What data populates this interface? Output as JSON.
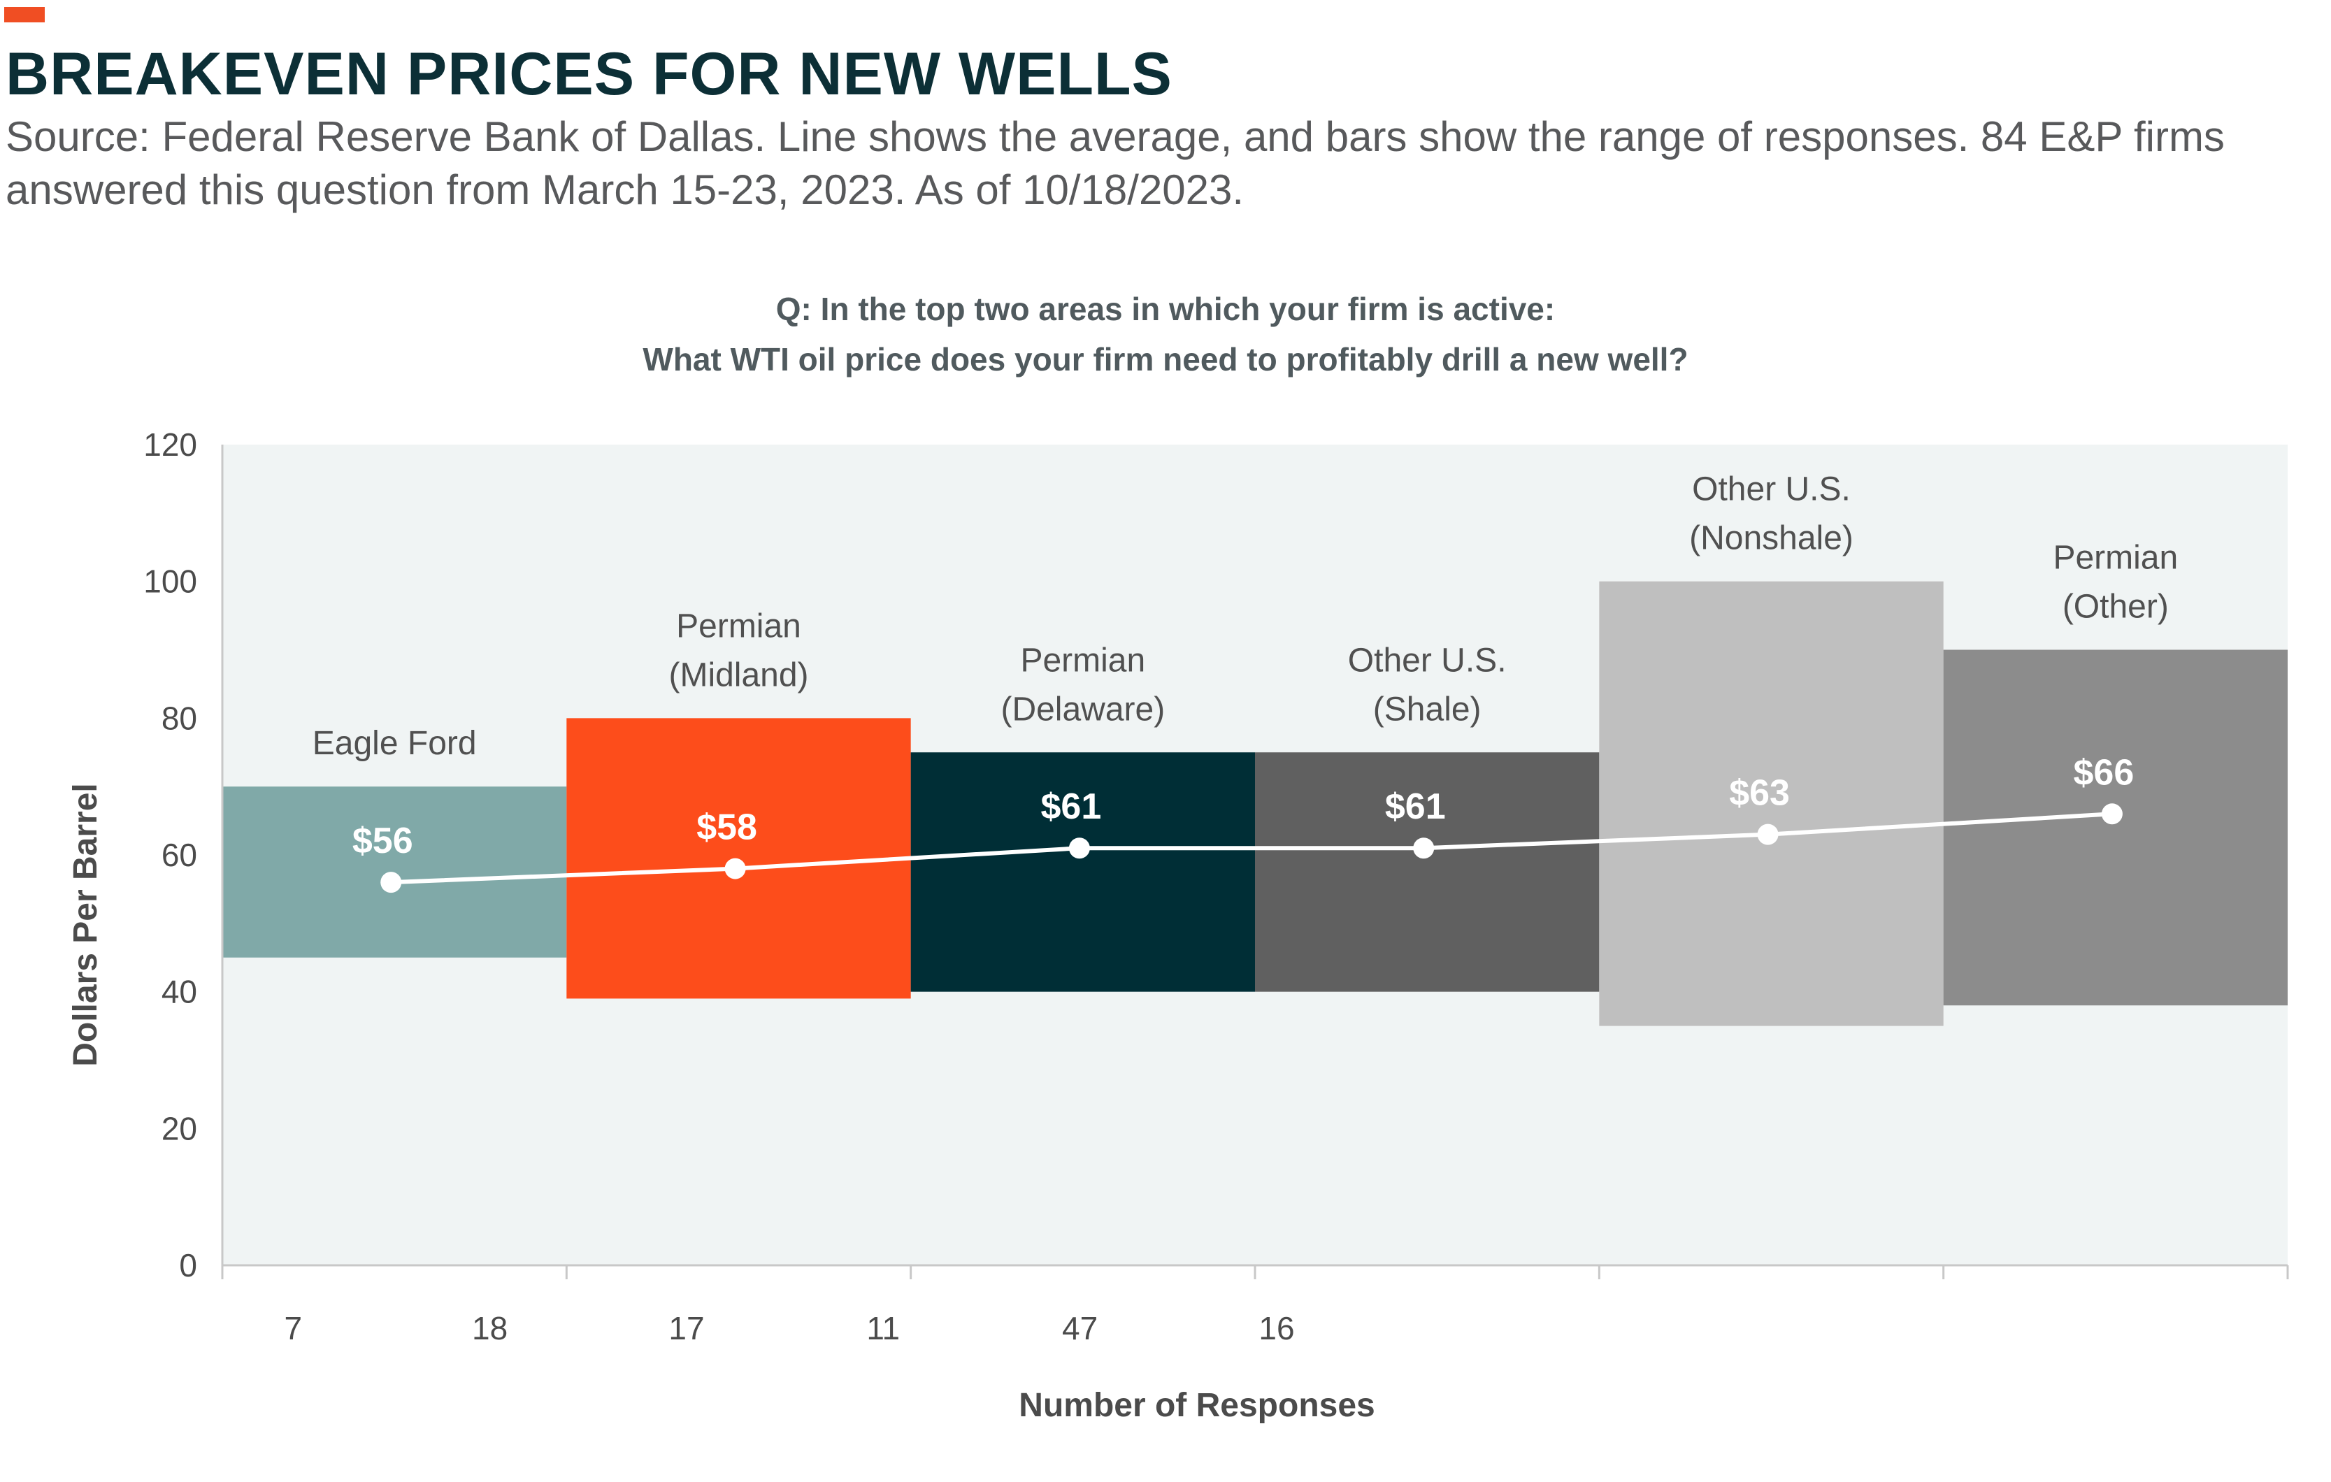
{
  "header": {
    "title": "BREAKEVEN PRICES FOR NEW WELLS",
    "subtitle": "Source: Federal Reserve Bank of Dallas. Line shows the average, and bars show the range of responses. 84 E&P firms answered this question from March 15-23, 2023. As of 10/18/2023.",
    "accent_color": "#f04e23"
  },
  "question": {
    "line1": "Q: In the top two areas in which your firm is active:",
    "line2": "What WTI oil price does your firm need to profitably drill a new well?"
  },
  "chart_data": {
    "type": "bar",
    "subtype": "floating range bars with average line",
    "title": "",
    "xlabel": "Number of Responses",
    "ylabel": "Dollars Per Barrel",
    "ylim": [
      0,
      120
    ],
    "yticks": [
      0,
      20,
      40,
      60,
      80,
      100,
      120
    ],
    "x_tick_labels": [
      "7",
      "18",
      "17",
      "11",
      "47",
      "16"
    ],
    "grid": false,
    "plot_background": "#f0f4f4",
    "average_line_color": "#ffffff",
    "categories": [
      {
        "lines": [
          "Eagle Ford"
        ],
        "low": 45,
        "high": 70,
        "average": 56,
        "label": "$56",
        "color": "#80a9a8"
      },
      {
        "lines": [
          "Permian",
          "(Midland)"
        ],
        "low": 39,
        "high": 80,
        "average": 58,
        "label": "$58",
        "color": "#fd4d1b"
      },
      {
        "lines": [
          "Permian",
          "(Delaware)"
        ],
        "low": 40,
        "high": 75,
        "average": 61,
        "label": "$61",
        "color": "#002e36"
      },
      {
        "lines": [
          "Other U.S.",
          "(Shale)"
        ],
        "low": 40,
        "high": 75,
        "average": 61,
        "label": "$61",
        "color": "#606060"
      },
      {
        "lines": [
          "Other U.S.",
          "(Nonshale)"
        ],
        "low": 35,
        "high": 100,
        "average": 63,
        "label": "$63",
        "color": "#bfbfbf"
      },
      {
        "lines": [
          "Permian",
          "(Other)"
        ],
        "low": 38,
        "high": 90,
        "average": 66,
        "label": "$66",
        "color": "#8c8c8c"
      }
    ]
  }
}
